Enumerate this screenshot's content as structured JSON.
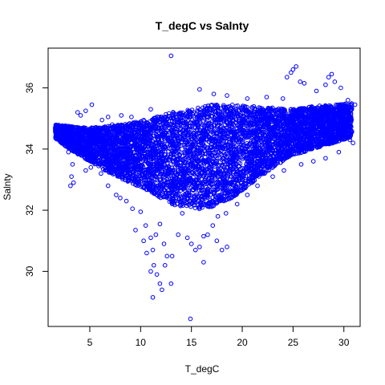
{
  "chart_data": {
    "type": "scatter",
    "title": "T_degC vs Salnty",
    "xlabel": "T_degC",
    "ylabel": "Salnty",
    "xlim": [
      0.9,
      31.6
    ],
    "ylim": [
      28.2,
      37.3
    ],
    "xticks": [
      5,
      10,
      15,
      20,
      25,
      30
    ],
    "yticks": [
      30,
      32,
      34,
      36
    ],
    "grid": false,
    "legend": "none",
    "marker": "open-circle",
    "point_color": "#0000ff",
    "envelope": [
      [
        1.6,
        34.35,
        34.8
      ],
      [
        3,
        34.0,
        34.75
      ],
      [
        5,
        33.6,
        34.7
      ],
      [
        7,
        33.2,
        34.75
      ],
      [
        9,
        32.9,
        34.85
      ],
      [
        11,
        32.6,
        35.0
      ],
      [
        13,
        32.2,
        35.2
      ],
      [
        15,
        32.0,
        35.3
      ],
      [
        17,
        32.1,
        35.45
      ],
      [
        19,
        32.4,
        35.45
      ],
      [
        21,
        32.9,
        35.4
      ],
      [
        23,
        33.4,
        35.35
      ],
      [
        25,
        33.8,
        35.3
      ],
      [
        27,
        34.0,
        35.4
      ],
      [
        29,
        34.2,
        35.45
      ],
      [
        30.8,
        34.4,
        35.5
      ]
    ],
    "series": [
      {
        "values": [
          [
            1.8,
            34.65
          ],
          [
            2.1,
            34.6
          ],
          [
            2.6,
            34.5
          ],
          [
            3.1,
            34.4
          ],
          [
            3.5,
            34.3
          ],
          [
            2.9,
            33.9
          ],
          [
            3.3,
            33.5
          ],
          [
            3.2,
            33.1
          ],
          [
            3.1,
            32.8
          ],
          [
            3.4,
            32.9
          ],
          [
            4.1,
            35.1
          ],
          [
            4.6,
            35.25
          ],
          [
            5.2,
            35.45
          ],
          [
            3.8,
            35.2
          ],
          [
            6.2,
            34.95
          ],
          [
            6.8,
            35.05
          ],
          [
            7.2,
            34.8
          ],
          [
            8.1,
            35.1
          ],
          [
            9.1,
            35.05
          ],
          [
            11.0,
            35.3
          ],
          [
            4.6,
            33.3
          ],
          [
            5.1,
            33.4
          ],
          [
            6.1,
            33.2
          ],
          [
            6.8,
            32.8
          ],
          [
            7.6,
            32.5
          ],
          [
            8.0,
            32.4
          ],
          [
            8.6,
            32.3
          ],
          [
            9.2,
            32.05
          ],
          [
            10.0,
            31.95
          ],
          [
            9.5,
            31.35
          ],
          [
            10.5,
            31.5
          ],
          [
            11.0,
            31.1
          ],
          [
            11.5,
            31.2
          ],
          [
            11.9,
            31.55
          ],
          [
            10.3,
            31.0
          ],
          [
            10.6,
            30.6
          ],
          [
            11.2,
            30.7
          ],
          [
            12.3,
            30.9
          ],
          [
            12.6,
            30.5
          ],
          [
            13.1,
            30.5
          ],
          [
            12.4,
            30.2
          ],
          [
            11.3,
            30.2
          ],
          [
            11.0,
            30.0
          ],
          [
            11.6,
            29.9
          ],
          [
            13.0,
            29.6
          ],
          [
            11.9,
            29.6
          ],
          [
            11.2,
            29.15
          ],
          [
            12.1,
            29.4
          ],
          [
            13.7,
            31.2
          ],
          [
            14.1,
            31.9
          ],
          [
            14.6,
            31.1
          ],
          [
            15.0,
            30.9
          ],
          [
            15.4,
            30.7
          ],
          [
            15.8,
            30.8
          ],
          [
            16.2,
            31.15
          ],
          [
            16.6,
            31.2
          ],
          [
            17.1,
            31.5
          ],
          [
            17.5,
            31.0
          ],
          [
            18.0,
            30.7
          ],
          [
            18.5,
            30.8
          ],
          [
            14.9,
            28.45
          ],
          [
            16.2,
            30.3
          ],
          [
            13.0,
            37.05
          ],
          [
            15.8,
            35.95
          ],
          [
            17.2,
            35.8
          ],
          [
            18.5,
            35.75
          ],
          [
            20.5,
            35.65
          ],
          [
            22.4,
            35.7
          ],
          [
            24.0,
            35.65
          ],
          [
            24.4,
            36.35
          ],
          [
            24.8,
            36.5
          ],
          [
            25.0,
            36.6
          ],
          [
            25.3,
            36.7
          ],
          [
            25.7,
            36.2
          ],
          [
            26.1,
            36.15
          ],
          [
            27.3,
            35.9
          ],
          [
            28.2,
            36.1
          ],
          [
            28.5,
            36.35
          ],
          [
            28.8,
            36.45
          ],
          [
            29.1,
            36.2
          ],
          [
            29.7,
            36.0
          ],
          [
            30.4,
            35.6
          ],
          [
            31.1,
            35.45
          ],
          [
            30.6,
            34.3
          ],
          [
            30.9,
            34.2
          ],
          [
            30.2,
            34.6
          ],
          [
            29.5,
            33.9
          ],
          [
            28.2,
            33.7
          ],
          [
            27.0,
            33.6
          ],
          [
            25.8,
            33.5
          ],
          [
            24.1,
            33.3
          ],
          [
            23.0,
            33.1
          ],
          [
            21.5,
            32.8
          ],
          [
            20.5,
            32.5
          ],
          [
            19.5,
            32.2
          ],
          [
            18.4,
            31.9
          ],
          [
            17.6,
            31.8
          ],
          [
            20.0,
            33.0
          ],
          [
            22.2,
            33.2
          ],
          [
            26.8,
            34.0
          ]
        ]
      }
    ]
  }
}
